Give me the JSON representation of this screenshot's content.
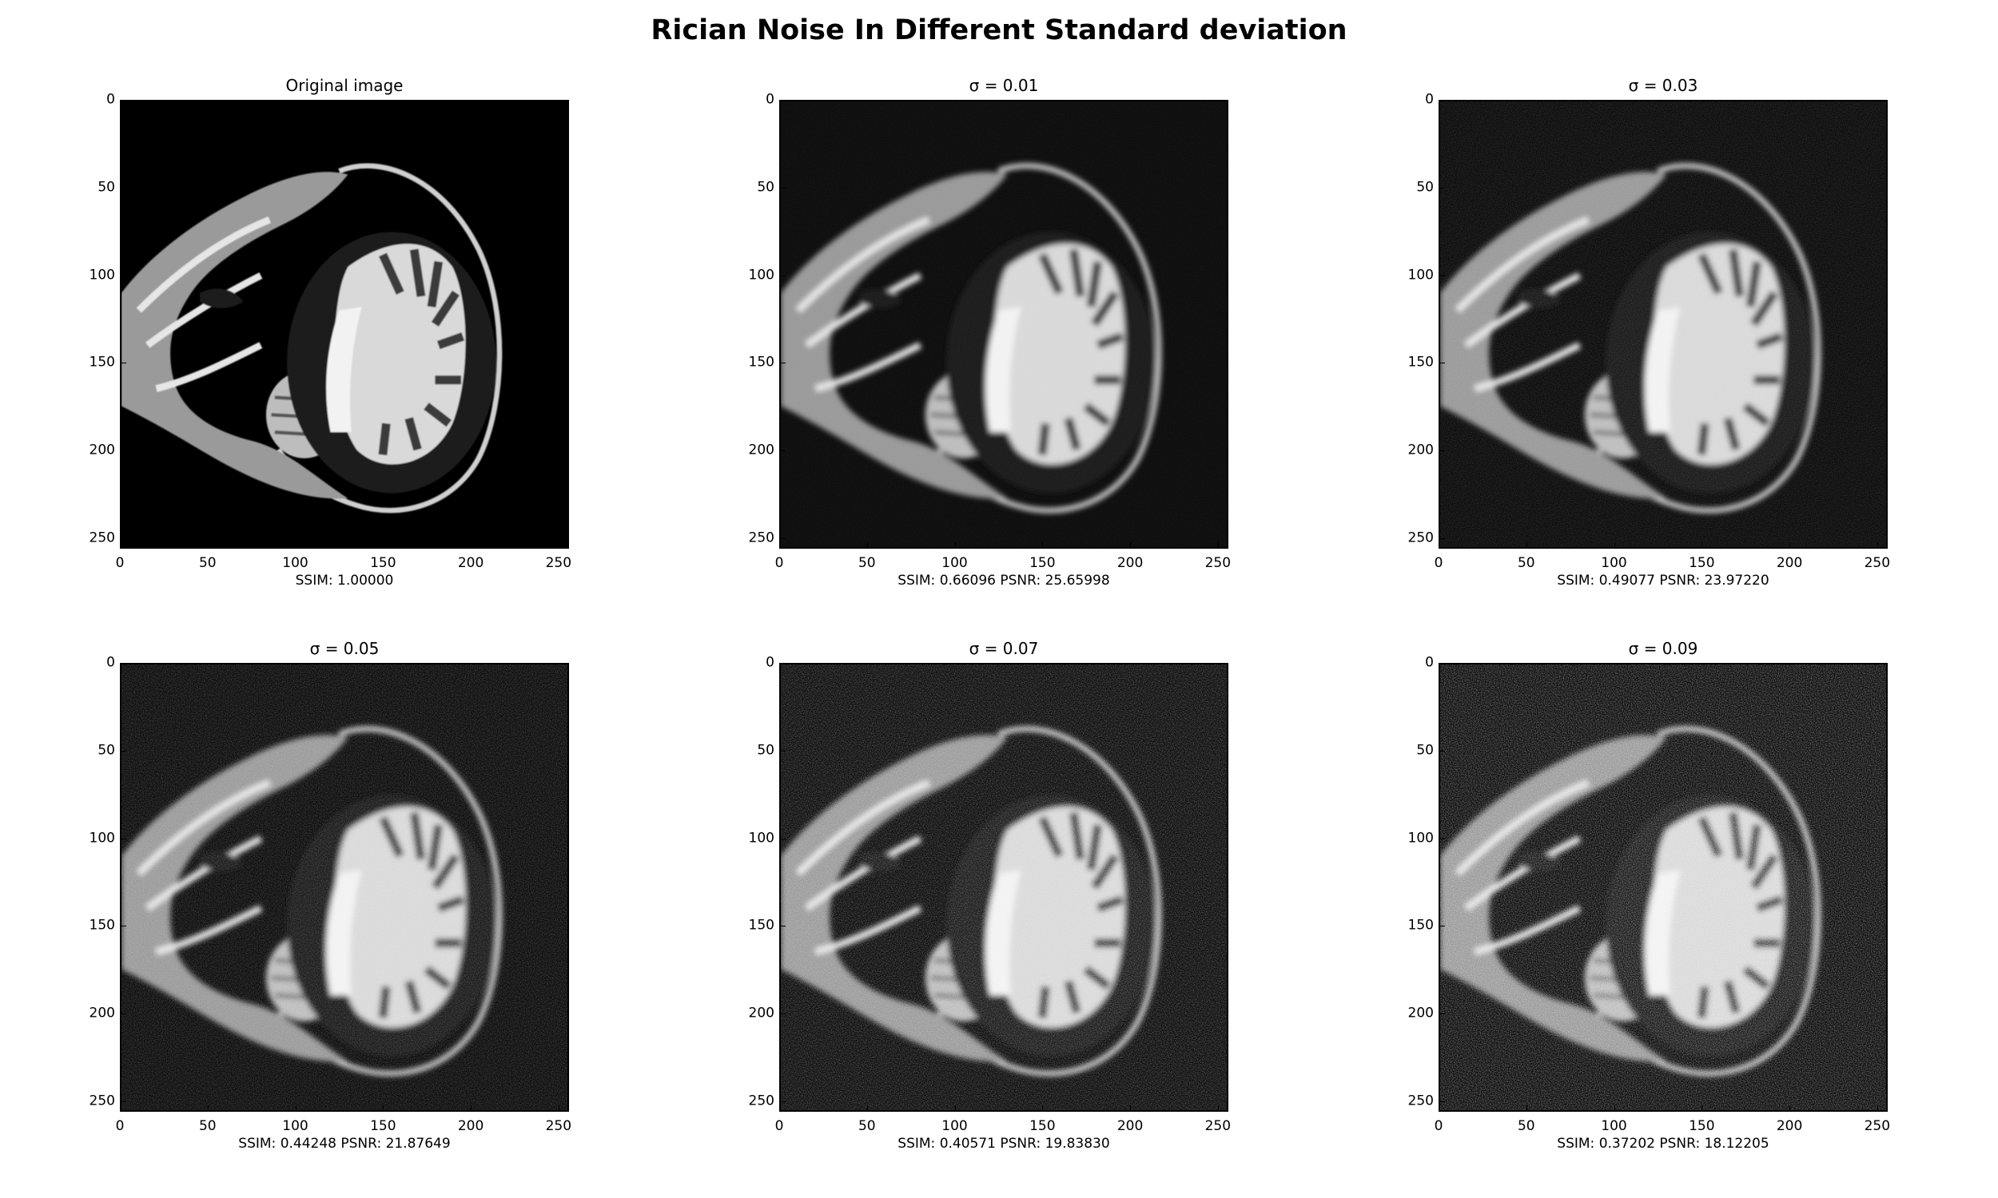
{
  "figure": {
    "title": "Rician Noise In Different Standard deviation"
  },
  "axis_ticks": {
    "x": [
      "0",
      "50",
      "100",
      "150",
      "200",
      "250"
    ],
    "y": [
      "0",
      "50",
      "100",
      "150",
      "200",
      "250"
    ]
  },
  "panels": [
    {
      "title": "Original image",
      "caption": "SSIM: 1.00000",
      "sigma": 0.0
    },
    {
      "title": "σ = 0.01",
      "caption": "SSIM: 0.66096 PSNR: 25.65998",
      "sigma": 0.01
    },
    {
      "title": "σ = 0.03",
      "caption": "SSIM: 0.49077 PSNR: 23.97220",
      "sigma": 0.03
    },
    {
      "title": "σ = 0.05",
      "caption": "SSIM: 0.44248 PSNR: 21.87649",
      "sigma": 0.05
    },
    {
      "title": "σ = 0.07",
      "caption": "SSIM: 0.40571 PSNR: 19.83830",
      "sigma": 0.07
    },
    {
      "title": "σ = 0.09",
      "caption": "SSIM: 0.37202 PSNR: 18.12205",
      "sigma": 0.09
    }
  ],
  "image_description_icon": "brain-mri-sagittal-slice"
}
